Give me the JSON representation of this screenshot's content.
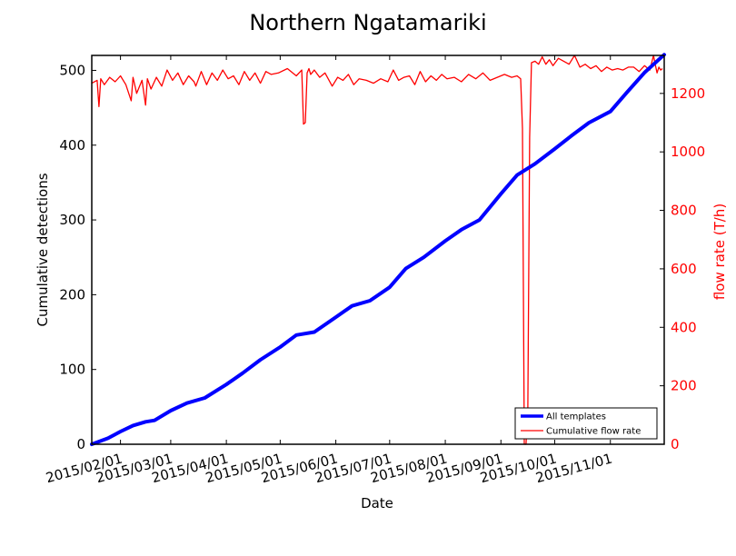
{
  "chart_data": {
    "type": "line",
    "title": "Northern Ngatamariki",
    "xlabel": "Date",
    "ylabel_left": "Cumulative detections",
    "ylabel_right": "flow rate (T/h)",
    "x_range": [
      "2015-01-16",
      "2015-12-01"
    ],
    "ylim_left": [
      0,
      520
    ],
    "ylim_right": [
      0,
      1330
    ],
    "x_ticks": [
      "2015/02/01",
      "2015/03/01",
      "2015/04/01",
      "2015/05/01",
      "2015/06/01",
      "2015/07/01",
      "2015/08/01",
      "2015/09/01",
      "2015/10/01",
      "2015/11/01"
    ],
    "y_ticks_left": [
      0,
      100,
      200,
      300,
      400,
      500
    ],
    "y_ticks_right": [
      0,
      200,
      400,
      600,
      800,
      1000,
      1200
    ],
    "grid": false,
    "legend_position": "lower-right",
    "colors": {
      "detections": "#0000ff",
      "flow": "#ff0000",
      "right_axis": "#ff0000"
    },
    "series": [
      {
        "name": "All templates",
        "axis": "left",
        "x": [
          "2015-01-16",
          "2015-01-25",
          "2015-02-01",
          "2015-02-08",
          "2015-02-15",
          "2015-02-20",
          "2015-03-01",
          "2015-03-10",
          "2015-03-20",
          "2015-04-01",
          "2015-04-10",
          "2015-04-20",
          "2015-05-01",
          "2015-05-10",
          "2015-05-20",
          "2015-06-01",
          "2015-06-10",
          "2015-06-20",
          "2015-07-01",
          "2015-07-10",
          "2015-07-20",
          "2015-08-01",
          "2015-08-10",
          "2015-08-20",
          "2015-09-01",
          "2015-09-10",
          "2015-09-20",
          "2015-10-01",
          "2015-10-10",
          "2015-10-20",
          "2015-11-01",
          "2015-11-10",
          "2015-11-20",
          "2015-12-01"
        ],
        "y": [
          0,
          8,
          17,
          25,
          30,
          32,
          45,
          55,
          62,
          80,
          95,
          113,
          130,
          146,
          150,
          170,
          185,
          192,
          210,
          235,
          250,
          272,
          287,
          300,
          335,
          360,
          375,
          395,
          412,
          430,
          445,
          470,
          497,
          521
        ]
      },
      {
        "name": "Cumulative flow rate",
        "axis": "right",
        "x": [
          "2015-01-16",
          "2015-01-19",
          "2015-01-20",
          "2015-01-21",
          "2015-01-23",
          "2015-01-26",
          "2015-01-29",
          "2015-02-01",
          "2015-02-04",
          "2015-02-07",
          "2015-02-08",
          "2015-02-10",
          "2015-02-13",
          "2015-02-15",
          "2015-02-16",
          "2015-02-18",
          "2015-02-21",
          "2015-02-24",
          "2015-02-27",
          "2015-03-02",
          "2015-03-05",
          "2015-03-08",
          "2015-03-11",
          "2015-03-14",
          "2015-03-15",
          "2015-03-18",
          "2015-03-21",
          "2015-03-24",
          "2015-03-27",
          "2015-03-30",
          "2015-04-02",
          "2015-04-05",
          "2015-04-08",
          "2015-04-11",
          "2015-04-14",
          "2015-04-17",
          "2015-04-20",
          "2015-04-23",
          "2015-04-26",
          "2015-04-30",
          "2015-05-05",
          "2015-05-10",
          "2015-05-13",
          "2015-05-14",
          "2015-05-15",
          "2015-05-16",
          "2015-05-17",
          "2015-05-18",
          "2015-05-20",
          "2015-05-23",
          "2015-05-26",
          "2015-05-30",
          "2015-06-02",
          "2015-06-05",
          "2015-06-08",
          "2015-06-11",
          "2015-06-14",
          "2015-06-18",
          "2015-06-22",
          "2015-06-26",
          "2015-06-30",
          "2015-07-03",
          "2015-07-06",
          "2015-07-09",
          "2015-07-12",
          "2015-07-15",
          "2015-07-18",
          "2015-07-21",
          "2015-07-24",
          "2015-07-27",
          "2015-07-30",
          "2015-08-02",
          "2015-08-06",
          "2015-08-10",
          "2015-08-14",
          "2015-08-18",
          "2015-08-22",
          "2015-08-26",
          "2015-08-30",
          "2015-09-03",
          "2015-09-07",
          "2015-09-10",
          "2015-09-12",
          "2015-09-13",
          "2015-09-14",
          "2015-09-15",
          "2015-09-16",
          "2015-09-17",
          "2015-09-18",
          "2015-09-20",
          "2015-09-22",
          "2015-09-24",
          "2015-09-26",
          "2015-09-28",
          "2015-09-30",
          "2015-10-03",
          "2015-10-06",
          "2015-10-09",
          "2015-10-12",
          "2015-10-15",
          "2015-10-18",
          "2015-10-21",
          "2015-10-24",
          "2015-10-27",
          "2015-10-30",
          "2015-11-02",
          "2015-11-05",
          "2015-11-08",
          "2015-11-11",
          "2015-11-14",
          "2015-11-17",
          "2015-11-20",
          "2015-11-23",
          "2015-11-25",
          "2015-11-26",
          "2015-11-27",
          "2015-11-28",
          "2015-11-29",
          "2015-11-30"
        ],
        "y": [
          1235,
          1245,
          1155,
          1250,
          1230,
          1255,
          1240,
          1260,
          1230,
          1175,
          1255,
          1200,
          1245,
          1160,
          1250,
          1215,
          1255,
          1225,
          1280,
          1245,
          1270,
          1230,
          1260,
          1240,
          1225,
          1275,
          1230,
          1270,
          1245,
          1280,
          1250,
          1260,
          1230,
          1275,
          1245,
          1270,
          1235,
          1275,
          1265,
          1270,
          1285,
          1260,
          1280,
          1095,
          1100,
          1270,
          1285,
          1265,
          1280,
          1255,
          1270,
          1225,
          1255,
          1245,
          1265,
          1230,
          1250,
          1245,
          1235,
          1250,
          1240,
          1280,
          1245,
          1255,
          1260,
          1230,
          1275,
          1240,
          1260,
          1245,
          1265,
          1250,
          1255,
          1240,
          1265,
          1250,
          1270,
          1245,
          1255,
          1265,
          1255,
          1260,
          1250,
          1080,
          0,
          0,
          120,
          1050,
          1305,
          1310,
          1300,
          1325,
          1300,
          1315,
          1295,
          1320,
          1310,
          1300,
          1330,
          1290,
          1300,
          1285,
          1295,
          1275,
          1290,
          1280,
          1285,
          1280,
          1290,
          1290,
          1275,
          1295,
          1280,
          1330,
          1300,
          1270,
          1290,
          1280,
          1285
        ]
      }
    ]
  }
}
